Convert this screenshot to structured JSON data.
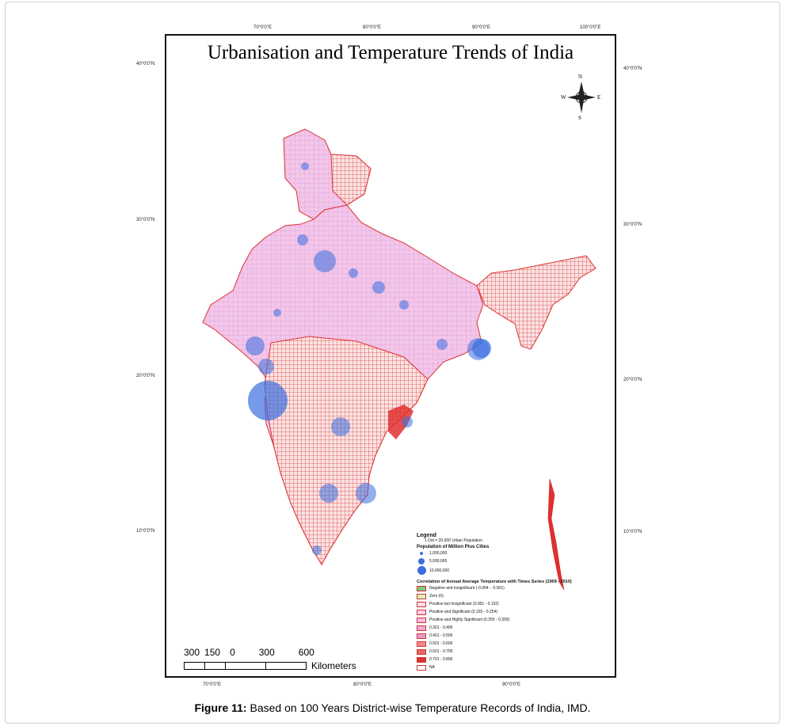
{
  "map_title": "Urbanisation and Temperature Trends of India",
  "caption": {
    "label": "Figure 11:",
    "text": " Based on 100 Years District-wise Temperature Records of India, IMD."
  },
  "grid_labels": {
    "top": [
      "70°0'0\"E",
      "80°0'0\"E",
      "90°0'0\"E",
      "100°0'0\"E"
    ],
    "bottom": [
      "70°0'0\"E",
      "80°0'0\"E",
      "90°0'0\"E"
    ],
    "left": [
      "40°0'0\"N",
      "30°0'0\"N",
      "20°0'0\"N",
      "10°0'0\"N"
    ],
    "right": [
      "40°0'0\"N",
      "30°0'0\"N",
      "20°0'0\"N",
      "10°0'0\"N"
    ]
  },
  "compass": {
    "n": "N",
    "s": "S",
    "e": "E",
    "w": "W"
  },
  "legend": {
    "title": "Legend",
    "dot_note": "1 Dot = 20,000 Urban Population",
    "cities_title": "Population of Million Plus Cities",
    "cities": [
      "1,000,000",
      "5,000,000",
      "10,000,000"
    ],
    "correlation_title": "Correlation of Annual Average Temperature with Times Series (1909 - 2010)",
    "classes": [
      {
        "label": "Negative and Insignificant (-0.094 - -0.001)",
        "color": "#7fc97f"
      },
      {
        "label": "Zero (0)",
        "color": "#d9f5b0"
      },
      {
        "label": "Positive but Insignificant (0.001 - 0.192)",
        "color": "#fde0ef"
      },
      {
        "label": "Positive and Significant (0.193 - 0.254)",
        "color": "#f9d0ea"
      },
      {
        "label": "Positive and Highly Significant (0.255 - 0.300)",
        "color": "#f4bde6"
      },
      {
        "label": "0.301 - 0.400",
        "color": "#eea8dc"
      },
      {
        "label": "0.401 - 0.500",
        "color": "#e79bd0"
      },
      {
        "label": "0.501 - 0.600",
        "color": "#f08a8a"
      },
      {
        "label": "0.601 - 0.700",
        "color": "#e66a6a"
      },
      {
        "label": "0.701 - 0.800",
        "color": "#e03030"
      },
      {
        "label": "NA",
        "color": "#ffffff"
      }
    ]
  },
  "scale_bar": {
    "ticks": [
      "300",
      "150",
      "0",
      "300",
      "600"
    ],
    "unit": "Kilometers"
  }
}
